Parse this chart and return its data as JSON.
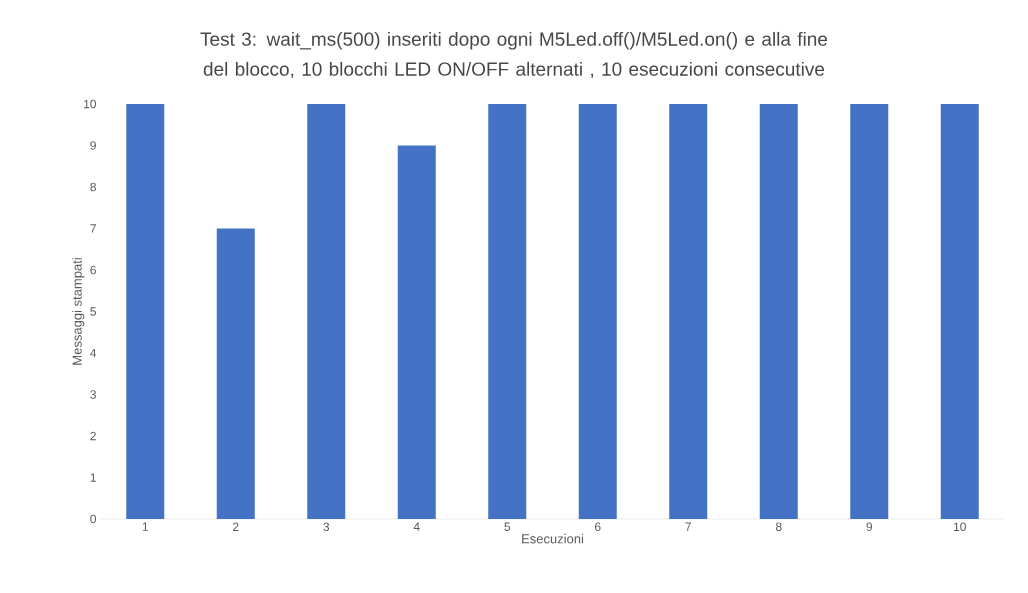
{
  "chart_data": {
    "type": "bar",
    "title": "Test 3: wait_ms(500) inseriti dopo ogni M5Led.off()/M5Led.on()  e alla fine del blocco, 10 blocchi LED ON/OFF alternati , 10 esecuzioni  consecutive",
    "xlabel": "Esecuzioni",
    "ylabel": "Messaggi stampati",
    "categories": [
      "1",
      "2",
      "3",
      "4",
      "5",
      "6",
      "7",
      "8",
      "9",
      "10"
    ],
    "values": [
      10,
      7,
      10,
      9,
      10,
      10,
      10,
      10,
      10,
      10
    ],
    "color": "#4472c4",
    "ylim": [
      0,
      10
    ],
    "yticks": [
      0,
      1,
      2,
      3,
      4,
      5,
      6,
      7,
      8,
      9,
      10
    ]
  }
}
